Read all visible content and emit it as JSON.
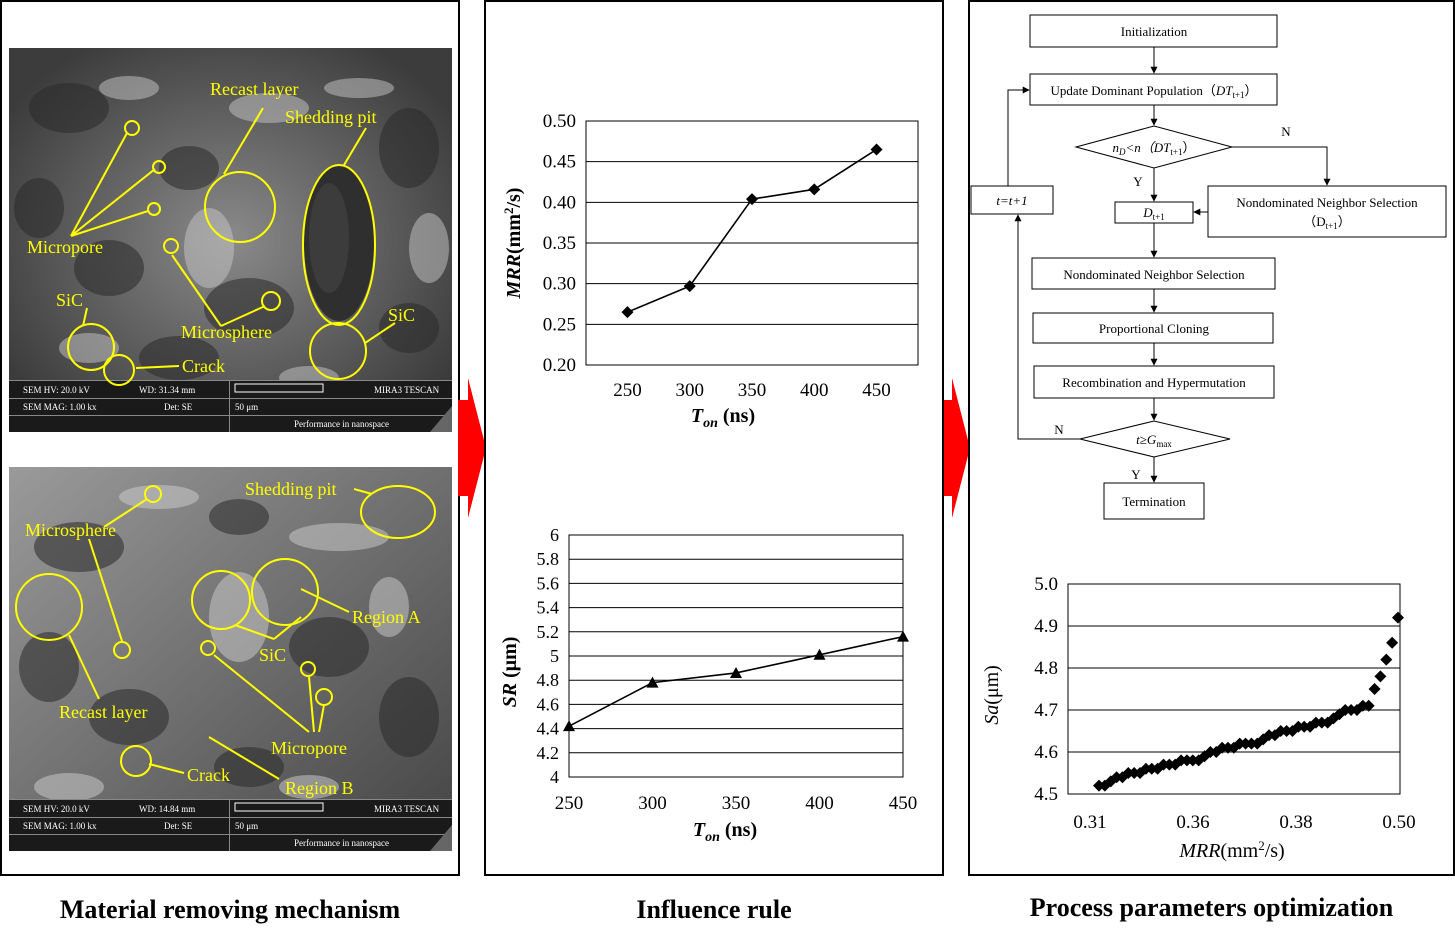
{
  "captions": {
    "left": "Material removing mechanism",
    "middle": "Influence rule",
    "right": "Process parameters optimization"
  },
  "colors": {
    "annotation": "#ffff00",
    "arrow": "#ff0000",
    "sem_bar": "#1a1a1a"
  },
  "sem_top": {
    "labels": [
      "Recast layer",
      "Shedding pit",
      "Micropore",
      "SiC",
      "Microsphere",
      "SiC",
      "Crack"
    ],
    "info": {
      "hv": "SEM HV: 20.0 kV",
      "wd": "WD: 31.34 mm",
      "brand": "MIRA3 TESCAN",
      "mag": "SEM MAG: 1.00 kx",
      "det": "Det: SE",
      "scale": "50 μm",
      "tag": "Performance in nanospace"
    }
  },
  "sem_bottom": {
    "labels": [
      "Shedding pit",
      "Microsphere",
      "Region A",
      "SiC",
      "Recast layer",
      "Micropore",
      "Crack",
      "Region B"
    ],
    "info": {
      "hv": "SEM HV: 20.0 kV",
      "wd": "WD: 14.84 mm",
      "brand": "MIRA3 TESCAN",
      "mag": "SEM MAG: 1.00 kx",
      "det": "Det: SE",
      "scale": "50 μm",
      "tag": "Performance in nanospace"
    }
  },
  "chart_data": [
    {
      "type": "line",
      "x": [
        250,
        300,
        350,
        400,
        450
      ],
      "y": [
        0.265,
        0.297,
        0.404,
        0.416,
        0.465
      ],
      "xlabel": "Ton (ns)",
      "ylabel": "MRR(mm2/s)",
      "yticks": [
        "0.20",
        "0.25",
        "0.30",
        "0.35",
        "0.40",
        "0.45",
        "0.50"
      ],
      "xticks": [
        "250",
        "300",
        "350",
        "400",
        "450"
      ],
      "ylim": [
        0.2,
        0.5
      ],
      "grid": "horizontal",
      "marker": "diamond"
    },
    {
      "type": "line",
      "x": [
        250,
        300,
        350,
        400,
        450
      ],
      "y": [
        4.42,
        4.78,
        4.86,
        5.01,
        5.16
      ],
      "xlabel": "Ton (ns)",
      "ylabel": "SR (μm)",
      "yticks": [
        "4",
        "4.2",
        "4.4",
        "4.6",
        "4.8",
        "5",
        "5.2",
        "5.4",
        "5.6",
        "5.8",
        "6"
      ],
      "xticks": [
        "250",
        "300",
        "350",
        "400",
        "450"
      ],
      "ylim": [
        4,
        6
      ],
      "grid": "horizontal",
      "marker": "triangle"
    },
    {
      "type": "scatter",
      "xticks": [
        "0.31",
        "0.36",
        "0.38",
        "0.50"
      ],
      "yticks": [
        "4.5",
        "4.6",
        "4.7",
        "4.8",
        "4.9",
        "5.0"
      ],
      "xlabel": "MRR(mm2/s)",
      "ylabel": "Sa(μm)",
      "ylim": [
        4.5,
        5.0
      ],
      "grid": "horizontal",
      "marker": "diamond",
      "x_rank": [
        1,
        2,
        3,
        4,
        5,
        6,
        7,
        8,
        9,
        10,
        11,
        12,
        13,
        14,
        15,
        16,
        17,
        18,
        19,
        20,
        21,
        22,
        23,
        24,
        25,
        26,
        27,
        28,
        29,
        30,
        31,
        32,
        33,
        34,
        35,
        36,
        37,
        38,
        39,
        40,
        41,
        42,
        43,
        44,
        45,
        46,
        47,
        48,
        49,
        50,
        51,
        52
      ],
      "y": [
        4.52,
        4.52,
        4.53,
        4.54,
        4.54,
        4.55,
        4.55,
        4.55,
        4.56,
        4.56,
        4.56,
        4.57,
        4.57,
        4.57,
        4.58,
        4.58,
        4.58,
        4.58,
        4.59,
        4.6,
        4.6,
        4.61,
        4.61,
        4.61,
        4.62,
        4.62,
        4.62,
        4.62,
        4.63,
        4.64,
        4.64,
        4.65,
        4.65,
        4.65,
        4.66,
        4.66,
        4.66,
        4.67,
        4.67,
        4.67,
        4.68,
        4.69,
        4.7,
        4.7,
        4.7,
        4.71,
        4.71,
        4.75,
        4.78,
        4.82,
        4.86,
        4.92
      ]
    }
  ],
  "flowchart": {
    "init": "Initialization",
    "update_main": "Update Dominant Population（",
    "update_dt": "DT",
    "update_sub": "t+1",
    "update_end": "）",
    "cond1_a": "n",
    "cond1_b": "D",
    "cond1_c": "<n（",
    "cond1_d": "DT",
    "cond1_e": "t+1",
    "cond1_f": "）",
    "dt1": "D",
    "dt1_sub": "t+1",
    "nns_right_line1": "Nondominated Neighbor Selection",
    "nns_right_line2": "（D",
    "nns_right_sub": "t+1",
    "nns_right_end": "）",
    "nns": "Nondominated Neighbor Selection",
    "clone": "Proportional Cloning",
    "recomb": "Recombination and Hypermutation",
    "cond2_a": "t≥G",
    "cond2_sub": "max",
    "term": "Termination",
    "t_update": "t=t+1",
    "yes": "Y",
    "no": "N"
  }
}
